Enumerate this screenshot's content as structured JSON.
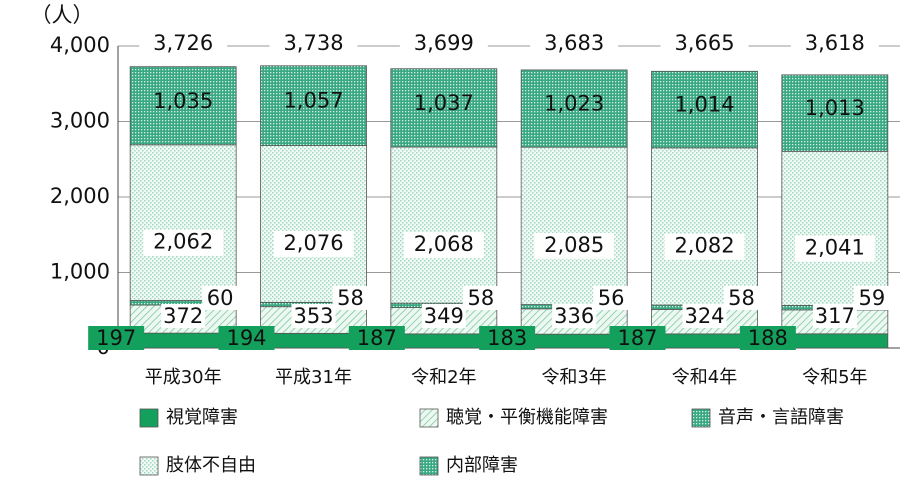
{
  "chart_data": {
    "type": "stacked_bar",
    "y_unit": "（人）",
    "categories": [
      "平成30年",
      "平成31年",
      "令和2年",
      "令和3年",
      "令和4年",
      "令和5年"
    ],
    "series": [
      {
        "name": "視覚障害",
        "color": "#12a05c",
        "pattern": "solid",
        "values": [
          197,
          194,
          187,
          183,
          187,
          188
        ]
      },
      {
        "name": "聴覚・平衡機能障害",
        "color": "#7cc9a0",
        "pattern": "hatch",
        "values": [
          372,
          353,
          349,
          336,
          324,
          317
        ]
      },
      {
        "name": "音声・言語障害",
        "color": "#3aa882",
        "pattern": "dots-dense",
        "values": [
          60,
          58,
          58,
          56,
          58,
          59
        ]
      },
      {
        "name": "肢体不自由",
        "color": "#9fd7c0",
        "pattern": "dots-light",
        "values": [
          2062,
          2076,
          2068,
          2085,
          2082,
          2041
        ],
        "value_labels": [
          "2,062",
          "2,076",
          "2,068",
          "2,085",
          "2,082",
          "2,041"
        ]
      },
      {
        "name": "内部障害",
        "color": "#3aa882",
        "pattern": "dots-dense",
        "values": [
          1035,
          1057,
          1037,
          1023,
          1014,
          1013
        ],
        "value_labels": [
          "1,035",
          "1,057",
          "1,037",
          "1,023",
          "1,014",
          "1,013"
        ]
      }
    ],
    "totals": [
      3726,
      3738,
      3699,
      3683,
      3665,
      3618
    ],
    "total_labels": [
      "3,726",
      "3,738",
      "3,699",
      "3,683",
      "3,665",
      "3,618"
    ],
    "ylim": [
      0,
      4000
    ],
    "yticks": [
      0,
      {
        "value": 1000,
        "label": "1,000"
      },
      {
        "value": 2000,
        "label": "2,000"
      },
      {
        "value": 3000,
        "label": "3,000"
      },
      {
        "value": 4000,
        "label": "4,000"
      }
    ],
    "grid": true
  }
}
